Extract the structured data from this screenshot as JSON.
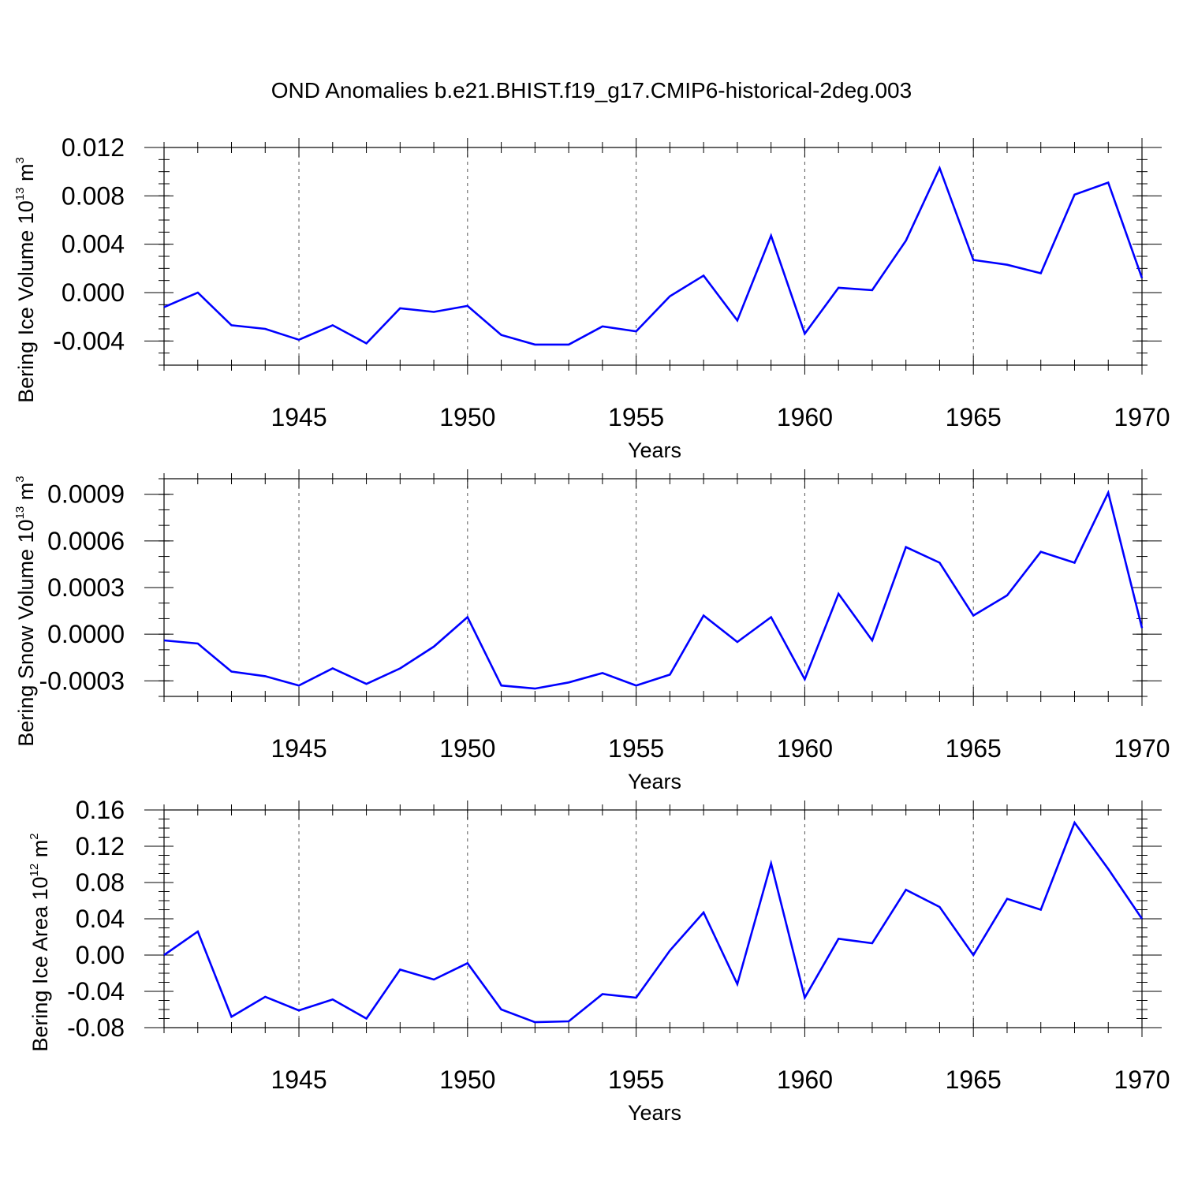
{
  "title": "OND Anomalies b.e21.BHIST.f19_g17.CMIP6-historical-2deg.003",
  "colors": {
    "line": "#0000ff",
    "axis": "#000000",
    "grid": "#555555"
  },
  "chart_data": [
    {
      "type": "line",
      "ylabel": "Bering Ice Volume 10",
      "ylabel_exp": "13",
      "ylabel_unit": " m",
      "ylabel_unit_exp": "3",
      "xlabel": "Years",
      "xlim": [
        1941,
        1970
      ],
      "ylim": [
        -0.006,
        0.012
      ],
      "yticks": [
        -0.004,
        0.0,
        0.004,
        0.008,
        0.012
      ],
      "ytick_labels": [
        "-0.004",
        "0.000",
        "0.004",
        "0.008",
        "0.012"
      ],
      "yminor": 0.001,
      "xticks": [
        1945,
        1950,
        1955,
        1960,
        1965,
        1970
      ],
      "xtick_labels": [
        "1945",
        "1950",
        "1955",
        "1960",
        "1965",
        "1970"
      ],
      "grid_x": [
        1945,
        1950,
        1955,
        1960,
        1965
      ],
      "x": [
        1941,
        1942,
        1943,
        1944,
        1945,
        1946,
        1947,
        1948,
        1949,
        1950,
        1951,
        1952,
        1953,
        1954,
        1955,
        1956,
        1957,
        1958,
        1959,
        1960,
        1961,
        1962,
        1963,
        1964,
        1965,
        1966,
        1967,
        1968,
        1969,
        1970
      ],
      "values": [
        -0.0012,
        0.0,
        -0.0027,
        -0.003,
        -0.0039,
        -0.0027,
        -0.0042,
        -0.0013,
        -0.0016,
        -0.0011,
        -0.0035,
        -0.0043,
        -0.0043,
        -0.0028,
        -0.0032,
        -0.0003,
        0.0014,
        -0.0023,
        0.0047,
        -0.0034,
        0.0004,
        0.0002,
        0.0043,
        0.0103,
        0.0027,
        0.0023,
        0.0016,
        0.0081,
        0.0091,
        0.0012
      ]
    },
    {
      "type": "line",
      "ylabel": "Bering Snow Volume 10",
      "ylabel_exp": "13",
      "ylabel_unit": " m",
      "ylabel_unit_exp": "3",
      "xlabel": "Years",
      "xlim": [
        1941,
        1970
      ],
      "ylim": [
        -0.0004,
        0.001
      ],
      "yticks": [
        -0.0003,
        0.0,
        0.0003,
        0.0006,
        0.0009
      ],
      "ytick_labels": [
        "-0.0003",
        "0.0000",
        "0.0003",
        "0.0006",
        "0.0009"
      ],
      "yminor": 0.0001,
      "xticks": [
        1945,
        1950,
        1955,
        1960,
        1965,
        1970
      ],
      "xtick_labels": [
        "1945",
        "1950",
        "1955",
        "1960",
        "1965",
        "1970"
      ],
      "grid_x": [
        1945,
        1950,
        1955,
        1960,
        1965
      ],
      "x": [
        1941,
        1942,
        1943,
        1944,
        1945,
        1946,
        1947,
        1948,
        1949,
        1950,
        1951,
        1952,
        1953,
        1954,
        1955,
        1956,
        1957,
        1958,
        1959,
        1960,
        1961,
        1962,
        1963,
        1964,
        1965,
        1966,
        1967,
        1968,
        1969,
        1970
      ],
      "values": [
        -4e-05,
        -6e-05,
        -0.00024,
        -0.00027,
        -0.00033,
        -0.00022,
        -0.00032,
        -0.00022,
        -8e-05,
        0.00011,
        -0.00033,
        -0.00035,
        -0.00031,
        -0.00025,
        -0.00033,
        -0.00026,
        0.00012,
        -5e-05,
        0.00011,
        -0.00029,
        0.00026,
        -4e-05,
        0.00056,
        0.00046,
        0.00012,
        0.00025,
        0.00053,
        0.00046,
        0.00091,
        4e-05
      ]
    },
    {
      "type": "line",
      "ylabel": "Bering Ice Area 10",
      "ylabel_exp": "12",
      "ylabel_unit": " m",
      "ylabel_unit_exp": "2",
      "xlabel": "Years",
      "xlim": [
        1941,
        1970
      ],
      "ylim": [
        -0.08,
        0.16
      ],
      "yticks": [
        -0.08,
        -0.04,
        0.0,
        0.04,
        0.08,
        0.12,
        0.16
      ],
      "ytick_labels": [
        "-0.08",
        "-0.04",
        "0.00",
        "0.04",
        "0.08",
        "0.12",
        "0.16"
      ],
      "yminor": 0.01,
      "xticks": [
        1945,
        1950,
        1955,
        1960,
        1965,
        1970
      ],
      "xtick_labels": [
        "1945",
        "1950",
        "1955",
        "1960",
        "1965",
        "1970"
      ],
      "grid_x": [
        1945,
        1950,
        1955,
        1960,
        1965
      ],
      "x": [
        1941,
        1942,
        1943,
        1944,
        1945,
        1946,
        1947,
        1948,
        1949,
        1950,
        1951,
        1952,
        1953,
        1954,
        1955,
        1956,
        1957,
        1958,
        1959,
        1960,
        1961,
        1962,
        1963,
        1964,
        1965,
        1966,
        1967,
        1968,
        1969,
        1970
      ],
      "values": [
        0.0,
        0.026,
        -0.068,
        -0.046,
        -0.061,
        -0.049,
        -0.07,
        -0.016,
        -0.027,
        -0.009,
        -0.06,
        -0.074,
        -0.073,
        -0.043,
        -0.047,
        0.005,
        0.047,
        -0.032,
        0.101,
        -0.047,
        0.018,
        0.013,
        0.072,
        0.053,
        0.0,
        0.062,
        0.05,
        0.146,
        0.095,
        0.04
      ]
    }
  ]
}
